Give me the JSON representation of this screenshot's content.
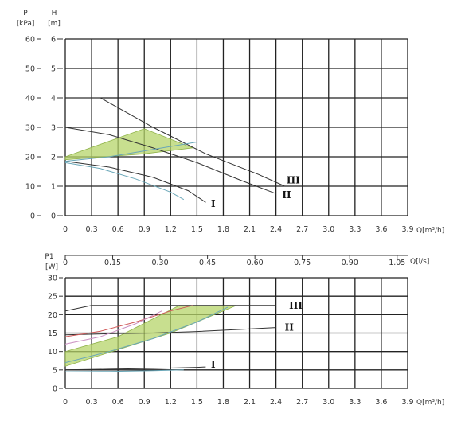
{
  "chart_data": [
    {
      "type": "line",
      "axes": {
        "y_outer_label": "P",
        "y_outer_unit": "[kPa]",
        "y_outer_ticks": [
          "60",
          "50",
          "40",
          "30",
          "20",
          "10",
          "0"
        ],
        "y_inner_label": "H",
        "y_inner_unit": "[m]",
        "y_inner_ticks": [
          "6",
          "5",
          "4",
          "3",
          "2",
          "1",
          "0"
        ],
        "x_label": "Q[m³/h]",
        "x_ticks": [
          "0",
          "0.3",
          "0.6",
          "0.9",
          "1.2",
          "1.5",
          "1.8",
          "2.1",
          "2.4",
          "2.7",
          "3.0",
          "3.3",
          "3.6",
          "3.9"
        ],
        "xlim": [
          0,
          3.9
        ],
        "ylim": [
          0,
          6
        ]
      },
      "grid": true,
      "series": [
        {
          "name": "III",
          "color": "#333333",
          "x": [
            0,
            0.4,
            1.0,
            1.6,
            2.2,
            2.5
          ],
          "y": [
            4.0,
            4.0,
            3.0,
            2.1,
            1.4,
            1.0
          ]
        },
        {
          "name": "II",
          "color": "#333333",
          "x": [
            0,
            0.5,
            1.0,
            1.5,
            2.0,
            2.4
          ],
          "y": [
            3.0,
            2.75,
            2.3,
            1.8,
            1.2,
            0.75
          ]
        },
        {
          "name": "I",
          "color": "#333333",
          "x": [
            0,
            0.5,
            1.0,
            1.4,
            1.6
          ],
          "y": [
            1.85,
            1.65,
            1.3,
            0.85,
            0.45
          ]
        },
        {
          "color": "#6aa7b8",
          "x": [
            0,
            0.4,
            0.8,
            1.2,
            1.35
          ],
          "y": [
            1.8,
            1.6,
            1.25,
            0.8,
            0.55
          ]
        },
        {
          "color": "#6aa7b8",
          "x": [
            0,
            0.5,
            1.0,
            1.5
          ],
          "y": [
            1.85,
            2.0,
            2.25,
            2.5
          ]
        }
      ],
      "bands": [
        {
          "color": "#b5d46a",
          "points": [
            [
              0,
              2.0
            ],
            [
              0.9,
              2.95
            ],
            [
              1.45,
              2.3
            ],
            [
              0.9,
              2.1
            ],
            [
              0,
              1.9
            ]
          ]
        }
      ],
      "labels": [
        {
          "text": "III",
          "x": 2.52,
          "y": 1.2
        },
        {
          "text": "II",
          "x": 2.47,
          "y": 0.7
        },
        {
          "text": "I",
          "x": 1.66,
          "y": 0.4
        }
      ]
    },
    {
      "type": "line",
      "axes": {
        "y_label": "P1",
        "y_unit": "[W]",
        "y_ticks": [
          "30",
          "25",
          "20",
          "15",
          "10",
          "5",
          "0"
        ],
        "x_label": "Q[m³/h]",
        "x_ticks": [
          "0",
          "0.3",
          "0.6",
          "0.9",
          "1.2",
          "1.5",
          "1.8",
          "2.1",
          "2.4",
          "2.7",
          "3.0",
          "3.3",
          "3.6",
          "3.9"
        ],
        "x_secondary_label": "Q[l/s]",
        "x_secondary_ticks": [
          "0",
          "0.15",
          "0.30",
          "0.45",
          "0.60",
          "0.75",
          "0.90",
          "1.05"
        ],
        "xlim": [
          0,
          3.9
        ],
        "ylim": [
          0,
          30
        ]
      },
      "grid": true,
      "series": [
        {
          "name": "III",
          "color": "#333333",
          "x": [
            0,
            0.3,
            2.4
          ],
          "y": [
            21,
            22.5,
            22.5
          ]
        },
        {
          "name": "II",
          "color": "#333333",
          "x": [
            0,
            0.5,
            1.0,
            1.5,
            2.0,
            2.4
          ],
          "y": [
            14.5,
            14.8,
            15.0,
            15.4,
            16.0,
            16.5
          ]
        },
        {
          "name": "I",
          "color": "#333333",
          "x": [
            0,
            0.5,
            1.0,
            1.5,
            1.6
          ],
          "y": [
            5.0,
            5.2,
            5.4,
            5.7,
            5.8
          ]
        },
        {
          "color": "#d05a5a",
          "x": [
            0,
            0.4,
            0.8,
            1.2,
            1.45
          ],
          "y": [
            14.0,
            15.5,
            18.0,
            21.0,
            22.5
          ]
        },
        {
          "color": "#c98ec0",
          "x": [
            0,
            0.4,
            0.8,
            1.1
          ],
          "y": [
            12.0,
            14.0,
            17.5,
            21.0
          ]
        },
        {
          "color": "#6aa7b8",
          "x": [
            0,
            0.5,
            1.0,
            1.5,
            1.85
          ],
          "y": [
            7.0,
            10.0,
            13.5,
            18.0,
            22.0
          ]
        },
        {
          "color": "#6aa7b8",
          "x": [
            0,
            0.5,
            1.0,
            1.35
          ],
          "y": [
            4.5,
            4.6,
            4.8,
            5.0
          ]
        }
      ],
      "bands": [
        {
          "color": "#b5d46a",
          "points": [
            [
              0,
              10
            ],
            [
              0.6,
              14
            ],
            [
              1.3,
              22.5
            ],
            [
              1.95,
              22.5
            ],
            [
              1.2,
              15
            ],
            [
              0.6,
              10.5
            ],
            [
              0,
              6
            ]
          ]
        }
      ],
      "labels": [
        {
          "text": "III",
          "x": 2.55,
          "y": 22.5
        },
        {
          "text": "II",
          "x": 2.5,
          "y": 16.5
        },
        {
          "text": "I",
          "x": 1.66,
          "y": 6.5
        }
      ]
    }
  ]
}
